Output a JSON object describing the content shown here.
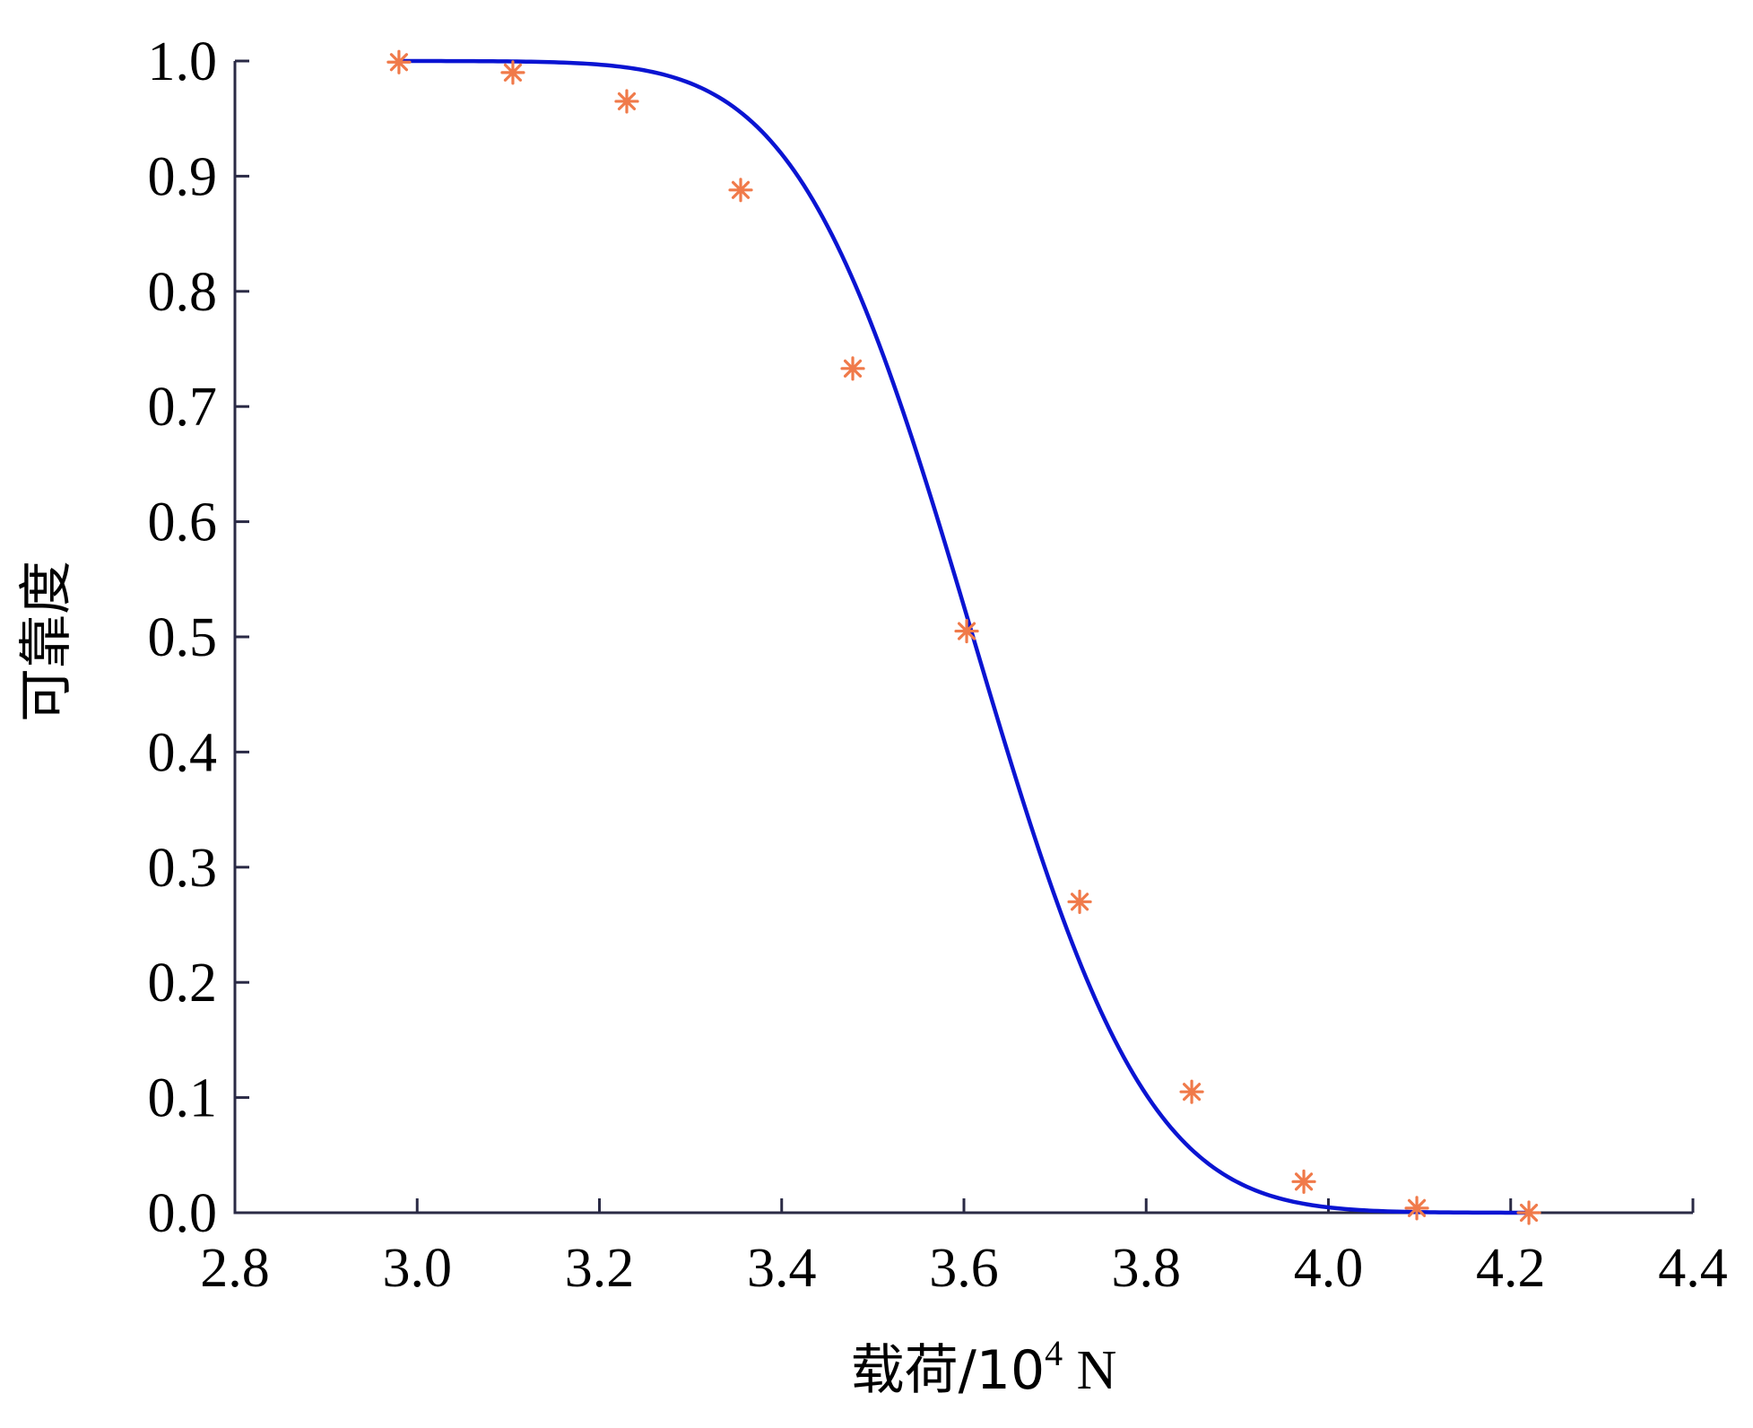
{
  "chart_data": {
    "type": "line",
    "title": "",
    "xlabel": "载荷/10",
    "xlabel_superscript": "4",
    "xlabel_unit": " N",
    "ylabel": "可靠度",
    "xlim": [
      2.8,
      4.4
    ],
    "ylim": [
      0.0,
      1.0
    ],
    "xticks": [
      "2.8",
      "3.0",
      "3.2",
      "3.4",
      "3.6",
      "3.8",
      "4.0",
      "4.2",
      "4.4"
    ],
    "yticks": [
      "0.0",
      "0.1",
      "0.2",
      "0.3",
      "0.4",
      "0.5",
      "0.6",
      "0.7",
      "0.8",
      "0.9",
      "1.0"
    ],
    "grid": false,
    "colors": {
      "curve": "#0a14d2",
      "markers": "#f07a4a",
      "axes": "#2a2a45"
    },
    "series": [
      {
        "type": "line",
        "mean": 3.61,
        "std": 0.15,
        "x_range": [
          2.98,
          4.22
        ]
      },
      {
        "type": "scatter",
        "marker": "asterisk",
        "x": [
          2.98,
          3.105,
          3.23,
          3.355,
          3.478,
          3.603,
          3.727,
          3.85,
          3.973,
          4.097,
          4.22
        ],
        "y": [
          0.999,
          0.99,
          0.965,
          0.888,
          0.733,
          0.505,
          0.27,
          0.105,
          0.027,
          0.004,
          0.0
        ]
      }
    ]
  }
}
